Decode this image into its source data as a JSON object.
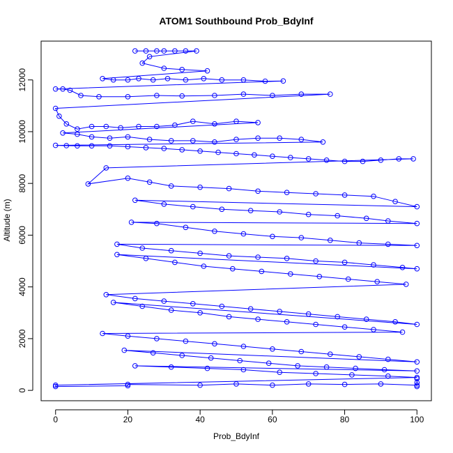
{
  "chart_data": {
    "type": "line",
    "title": "ATOM1 Southbound Prob_BdyInf",
    "xlabel": "Prob_BdyInf",
    "ylabel": "Altitude (m)",
    "xlim": [
      -4,
      104
    ],
    "ylim": [
      -400,
      13500
    ],
    "x_ticks": [
      0,
      20,
      40,
      60,
      80,
      100
    ],
    "y_ticks": [
      0,
      2000,
      4000,
      6000,
      8000,
      10000,
      12000
    ],
    "grid": false,
    "legend": "none",
    "line_color": "#0000ff",
    "marker": "open-circle",
    "series": [
      {
        "values_xy": [
          [
            22,
            13120
          ],
          [
            25,
            13120
          ],
          [
            28,
            13120
          ],
          [
            30,
            13120
          ],
          [
            33,
            13120
          ],
          [
            36,
            13120
          ],
          [
            39,
            13120
          ],
          [
            26,
            12900
          ],
          [
            24,
            12650
          ],
          [
            30,
            12450
          ],
          [
            35,
            12400
          ],
          [
            42,
            12350
          ],
          [
            13,
            12050
          ],
          [
            16,
            12000
          ],
          [
            20,
            12000
          ],
          [
            23,
            12050
          ],
          [
            27,
            12000
          ],
          [
            31,
            12050
          ],
          [
            36,
            12000
          ],
          [
            41,
            12050
          ],
          [
            46,
            12000
          ],
          [
            52,
            12000
          ],
          [
            58,
            11950
          ],
          [
            63,
            11960
          ],
          [
            0,
            11650
          ],
          [
            2,
            11650
          ],
          [
            4,
            11600
          ],
          [
            7,
            11400
          ],
          [
            12,
            11350
          ],
          [
            20,
            11350
          ],
          [
            28,
            11400
          ],
          [
            35,
            11380
          ],
          [
            44,
            11400
          ],
          [
            52,
            11450
          ],
          [
            60,
            11400
          ],
          [
            68,
            11450
          ],
          [
            76,
            11450
          ],
          [
            0,
            10900
          ],
          [
            1,
            10600
          ],
          [
            3,
            10300
          ],
          [
            6,
            10100
          ],
          [
            10,
            10200
          ],
          [
            14,
            10200
          ],
          [
            18,
            10150
          ],
          [
            23,
            10200
          ],
          [
            28,
            10200
          ],
          [
            33,
            10250
          ],
          [
            38,
            10400
          ],
          [
            44,
            10300
          ],
          [
            50,
            10400
          ],
          [
            56,
            10350
          ],
          [
            2,
            9950
          ],
          [
            6,
            9900
          ],
          [
            10,
            9800
          ],
          [
            15,
            9750
          ],
          [
            20,
            9800
          ],
          [
            26,
            9700
          ],
          [
            32,
            9650
          ],
          [
            38,
            9650
          ],
          [
            44,
            9600
          ],
          [
            50,
            9700
          ],
          [
            56,
            9750
          ],
          [
            62,
            9750
          ],
          [
            68,
            9700
          ],
          [
            74,
            9600
          ],
          [
            0,
            9470
          ],
          [
            3,
            9460
          ],
          [
            6,
            9450
          ],
          [
            10,
            9450
          ],
          [
            15,
            9450
          ],
          [
            20,
            9420
          ],
          [
            25,
            9380
          ],
          [
            30,
            9350
          ],
          [
            35,
            9300
          ],
          [
            40,
            9250
          ],
          [
            45,
            9200
          ],
          [
            50,
            9150
          ],
          [
            55,
            9100
          ],
          [
            60,
            9050
          ],
          [
            65,
            9000
          ],
          [
            70,
            8950
          ],
          [
            75,
            8900
          ],
          [
            80,
            8850
          ],
          [
            85,
            8850
          ],
          [
            90,
            8900
          ],
          [
            95,
            8950
          ],
          [
            99,
            8950
          ],
          [
            14,
            8600
          ],
          [
            9,
            7980
          ],
          [
            20,
            8200
          ],
          [
            26,
            8050
          ],
          [
            32,
            7900
          ],
          [
            40,
            7850
          ],
          [
            48,
            7800
          ],
          [
            56,
            7700
          ],
          [
            64,
            7650
          ],
          [
            72,
            7600
          ],
          [
            80,
            7550
          ],
          [
            88,
            7500
          ],
          [
            94,
            7300
          ],
          [
            100,
            7100
          ],
          [
            22,
            7350
          ],
          [
            30,
            7200
          ],
          [
            38,
            7100
          ],
          [
            46,
            7000
          ],
          [
            54,
            6950
          ],
          [
            62,
            6900
          ],
          [
            70,
            6800
          ],
          [
            78,
            6750
          ],
          [
            86,
            6650
          ],
          [
            92,
            6550
          ],
          [
            100,
            6450
          ],
          [
            21,
            6500
          ],
          [
            28,
            6450
          ],
          [
            36,
            6300
          ],
          [
            44,
            6150
          ],
          [
            52,
            6050
          ],
          [
            60,
            5950
          ],
          [
            68,
            5900
          ],
          [
            76,
            5800
          ],
          [
            84,
            5700
          ],
          [
            92,
            5650
          ],
          [
            100,
            5600
          ],
          [
            17,
            5650
          ],
          [
            24,
            5500
          ],
          [
            32,
            5400
          ],
          [
            40,
            5300
          ],
          [
            48,
            5200
          ],
          [
            56,
            5150
          ],
          [
            64,
            5100
          ],
          [
            72,
            5000
          ],
          [
            80,
            4950
          ],
          [
            88,
            4850
          ],
          [
            96,
            4750
          ],
          [
            100,
            4700
          ],
          [
            17,
            5250
          ],
          [
            25,
            5100
          ],
          [
            33,
            4950
          ],
          [
            41,
            4800
          ],
          [
            49,
            4700
          ],
          [
            57,
            4600
          ],
          [
            65,
            4500
          ],
          [
            73,
            4400
          ],
          [
            81,
            4300
          ],
          [
            89,
            4200
          ],
          [
            97,
            4100
          ],
          [
            14,
            3700
          ],
          [
            22,
            3550
          ],
          [
            30,
            3450
          ],
          [
            38,
            3350
          ],
          [
            46,
            3250
          ],
          [
            54,
            3150
          ],
          [
            62,
            3050
          ],
          [
            70,
            2950
          ],
          [
            78,
            2850
          ],
          [
            86,
            2750
          ],
          [
            94,
            2650
          ],
          [
            100,
            2550
          ],
          [
            16,
            3400
          ],
          [
            24,
            3250
          ],
          [
            32,
            3100
          ],
          [
            40,
            3000
          ],
          [
            48,
            2850
          ],
          [
            56,
            2750
          ],
          [
            64,
            2650
          ],
          [
            72,
            2550
          ],
          [
            80,
            2450
          ],
          [
            88,
            2350
          ],
          [
            96,
            2250
          ],
          [
            13,
            2200
          ],
          [
            20,
            2100
          ],
          [
            28,
            2000
          ],
          [
            36,
            1900
          ],
          [
            44,
            1800
          ],
          [
            52,
            1700
          ],
          [
            60,
            1600
          ],
          [
            68,
            1500
          ],
          [
            76,
            1400
          ],
          [
            84,
            1300
          ],
          [
            92,
            1200
          ],
          [
            100,
            1100
          ],
          [
            19,
            1550
          ],
          [
            27,
            1450
          ],
          [
            35,
            1350
          ],
          [
            43,
            1250
          ],
          [
            51,
            1150
          ],
          [
            59,
            1050
          ],
          [
            67,
            950
          ],
          [
            75,
            900
          ],
          [
            83,
            850
          ],
          [
            91,
            800
          ],
          [
            100,
            750
          ],
          [
            22,
            950
          ],
          [
            32,
            900
          ],
          [
            42,
            850
          ],
          [
            52,
            800
          ],
          [
            62,
            700
          ],
          [
            72,
            650
          ],
          [
            82,
            600
          ],
          [
            92,
            550
          ],
          [
            100,
            500
          ],
          [
            0,
            200
          ],
          [
            0,
            150
          ],
          [
            20,
            180
          ],
          [
            20,
            230
          ],
          [
            40,
            200
          ],
          [
            50,
            250
          ],
          [
            60,
            200
          ],
          [
            70,
            250
          ],
          [
            80,
            230
          ],
          [
            90,
            250
          ],
          [
            100,
            200
          ],
          [
            100,
            150
          ],
          [
            100,
            300
          ],
          [
            100,
            450
          ]
        ]
      }
    ]
  }
}
